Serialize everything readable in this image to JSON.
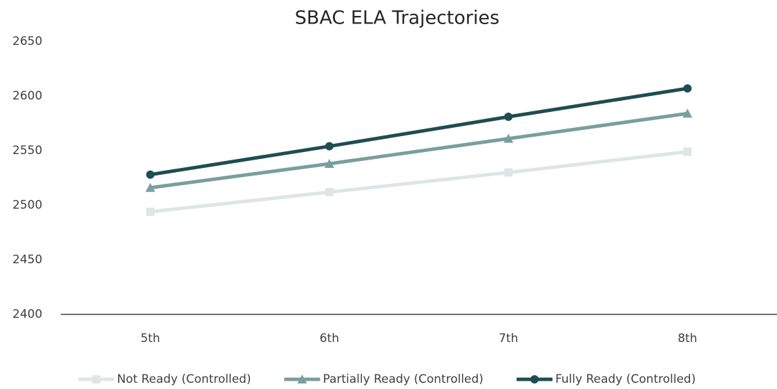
{
  "chart_data": {
    "type": "line",
    "title": "SBAC ELA Trajectories",
    "categories": [
      "5th",
      "6th",
      "7th",
      "8th"
    ],
    "ylim": [
      2400,
      2650
    ],
    "yticks": [
      2400,
      2450,
      2500,
      2550,
      2600,
      2650
    ],
    "series": [
      {
        "name": "Not Ready (Controlled)",
        "color": "#dde6e6",
        "marker": "square",
        "values": [
          2494,
          2512,
          2530,
          2549
        ]
      },
      {
        "name": "Partially Ready (Controlled)",
        "color": "#7a9e9e",
        "marker": "triangle",
        "values": [
          2516,
          2538,
          2561,
          2584
        ]
      },
      {
        "name": "Fully Ready (Controlled)",
        "color": "#1e4d52",
        "marker": "circle",
        "values": [
          2528,
          2554,
          2581,
          2607
        ]
      }
    ],
    "legend": "bottom"
  }
}
